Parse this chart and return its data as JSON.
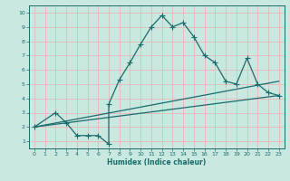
{
  "xlabel": "Humidex (Indice chaleur)",
  "xlim": [
    -0.5,
    23.5
  ],
  "ylim": [
    0.5,
    10.5
  ],
  "xticks": [
    0,
    1,
    2,
    3,
    4,
    5,
    6,
    7,
    8,
    9,
    10,
    11,
    12,
    13,
    14,
    15,
    16,
    17,
    18,
    19,
    20,
    21,
    22,
    23
  ],
  "yticks": [
    1,
    2,
    3,
    4,
    5,
    6,
    7,
    8,
    9,
    10
  ],
  "bg_color": "#c8e8e0",
  "line_color": "#1a6b6b",
  "grid_color": "#e8b8b8",
  "line1_x": [
    0,
    2,
    3,
    4,
    5,
    6,
    7,
    7,
    8,
    9,
    10,
    11,
    12,
    13,
    14,
    15,
    16,
    17,
    18,
    19,
    20,
    21,
    22,
    23
  ],
  "line1_y": [
    2,
    3,
    2.3,
    1.4,
    1.4,
    1.4,
    0.8,
    3.6,
    5.3,
    6.5,
    7.8,
    9.0,
    9.8,
    9.0,
    9.3,
    8.3,
    7.0,
    6.5,
    5.2,
    5.0,
    6.8,
    5.0,
    4.4,
    4.2
  ],
  "line2_x": [
    0,
    23
  ],
  "line2_y": [
    2.0,
    4.2
  ],
  "line3_x": [
    0,
    23
  ],
  "line3_y": [
    2.0,
    5.2
  ],
  "marker": "+",
  "marker_size": 4,
  "lw": 0.9
}
